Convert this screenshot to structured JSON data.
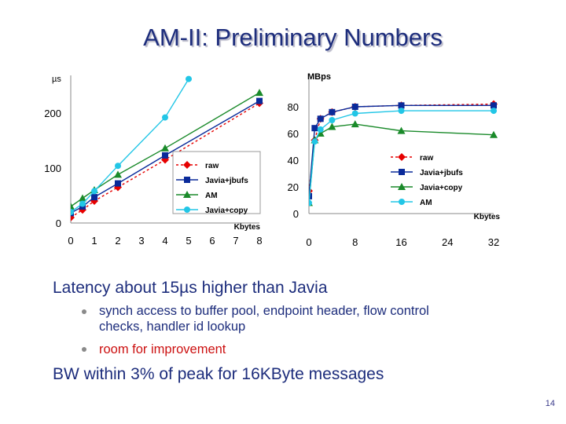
{
  "slide": {
    "title": "AM-II: Preliminary Numbers",
    "page_number": "14"
  },
  "bullets": {
    "b1": "Latency about 15µs higher than Javia",
    "b1_sub1_line1": "synch access to buffer pool, endpoint header, flow control",
    "b1_sub1_line2": "checks, handler id lookup",
    "b1_sub2": "room for improvement",
    "b2": "BW within 3% of peak for 16KByte messages"
  },
  "colors": {
    "raw": "#e60000",
    "jbufs": "#0a2a9a",
    "am": "#1a8a2a",
    "copy": "#22c6e6",
    "title": "#1d2d7c"
  },
  "chart_data": [
    {
      "type": "line",
      "title": "",
      "ylabel": "µs",
      "xlabel": "Kbytes",
      "xlim": [
        0,
        8
      ],
      "ylim": [
        0,
        250
      ],
      "xticks": [
        "0",
        "1",
        "2",
        "3",
        "4",
        "5",
        "6",
        "7",
        "8"
      ],
      "yticks": [
        "0",
        "100",
        "200"
      ],
      "grid": false,
      "legend_position": "inside-bottom-right",
      "series": [
        {
          "name": "raw",
          "color": "#e60000",
          "marker": "diamond",
          "dash": true,
          "x": [
            0,
            0.5,
            1,
            2,
            4,
            8
          ],
          "y": [
            10,
            24,
            40,
            65,
            115,
            218
          ]
        },
        {
          "name": "Javia+jbufs",
          "color": "#0a2a9a",
          "marker": "square",
          "dash": false,
          "x": [
            0,
            0.5,
            1,
            2,
            4,
            8
          ],
          "y": [
            18,
            30,
            47,
            72,
            123,
            222
          ]
        },
        {
          "name": "AM",
          "color": "#1a8a2a",
          "marker": "triangle",
          "dash": false,
          "x": [
            0,
            0.5,
            1,
            2,
            4,
            8
          ],
          "y": [
            30,
            45,
            60,
            88,
            136,
            237
          ]
        },
        {
          "name": "Javia+copy",
          "color": "#22c6e6",
          "marker": "circle",
          "dash": false,
          "x": [
            0,
            0.5,
            1,
            2,
            4,
            5
          ],
          "y": [
            20,
            35,
            58,
            104,
            192,
            262
          ]
        }
      ]
    },
    {
      "type": "line",
      "title": "",
      "ylabel": "MBps",
      "xlabel": "Kbytes",
      "xlim": [
        0,
        32
      ],
      "ylim": [
        0,
        90
      ],
      "xticks": [
        "0",
        "8",
        "16",
        "24",
        "32"
      ],
      "yticks": [
        "0",
        "20",
        "40",
        "60",
        "80"
      ],
      "grid": false,
      "legend_position": "inside-right",
      "series": [
        {
          "name": "raw",
          "color": "#e60000",
          "marker": "diamond",
          "dash": true,
          "x": [
            0,
            1,
            2,
            4,
            8,
            16,
            32
          ],
          "y": [
            17,
            55,
            71,
            76,
            80,
            81,
            82
          ]
        },
        {
          "name": "Javia+jbufs",
          "color": "#0a2a9a",
          "marker": "square",
          "dash": false,
          "x": [
            0,
            1,
            2,
            4,
            8,
            16,
            32
          ],
          "y": [
            13,
            64,
            71,
            76,
            80,
            81,
            81
          ]
        },
        {
          "name": "Javia+copy",
          "color": "#1a8a2a",
          "marker": "triangle",
          "dash": false,
          "x": [
            0,
            1,
            2,
            4,
            8,
            16,
            32
          ],
          "y": [
            8,
            55,
            60,
            65,
            67,
            62,
            59
          ]
        },
        {
          "name": "AM",
          "color": "#22c6e6",
          "marker": "circle",
          "dash": false,
          "x": [
            0,
            1,
            2,
            4,
            8,
            16,
            32
          ],
          "y": [
            8,
            54,
            63,
            70,
            75,
            77,
            77
          ]
        }
      ]
    }
  ]
}
